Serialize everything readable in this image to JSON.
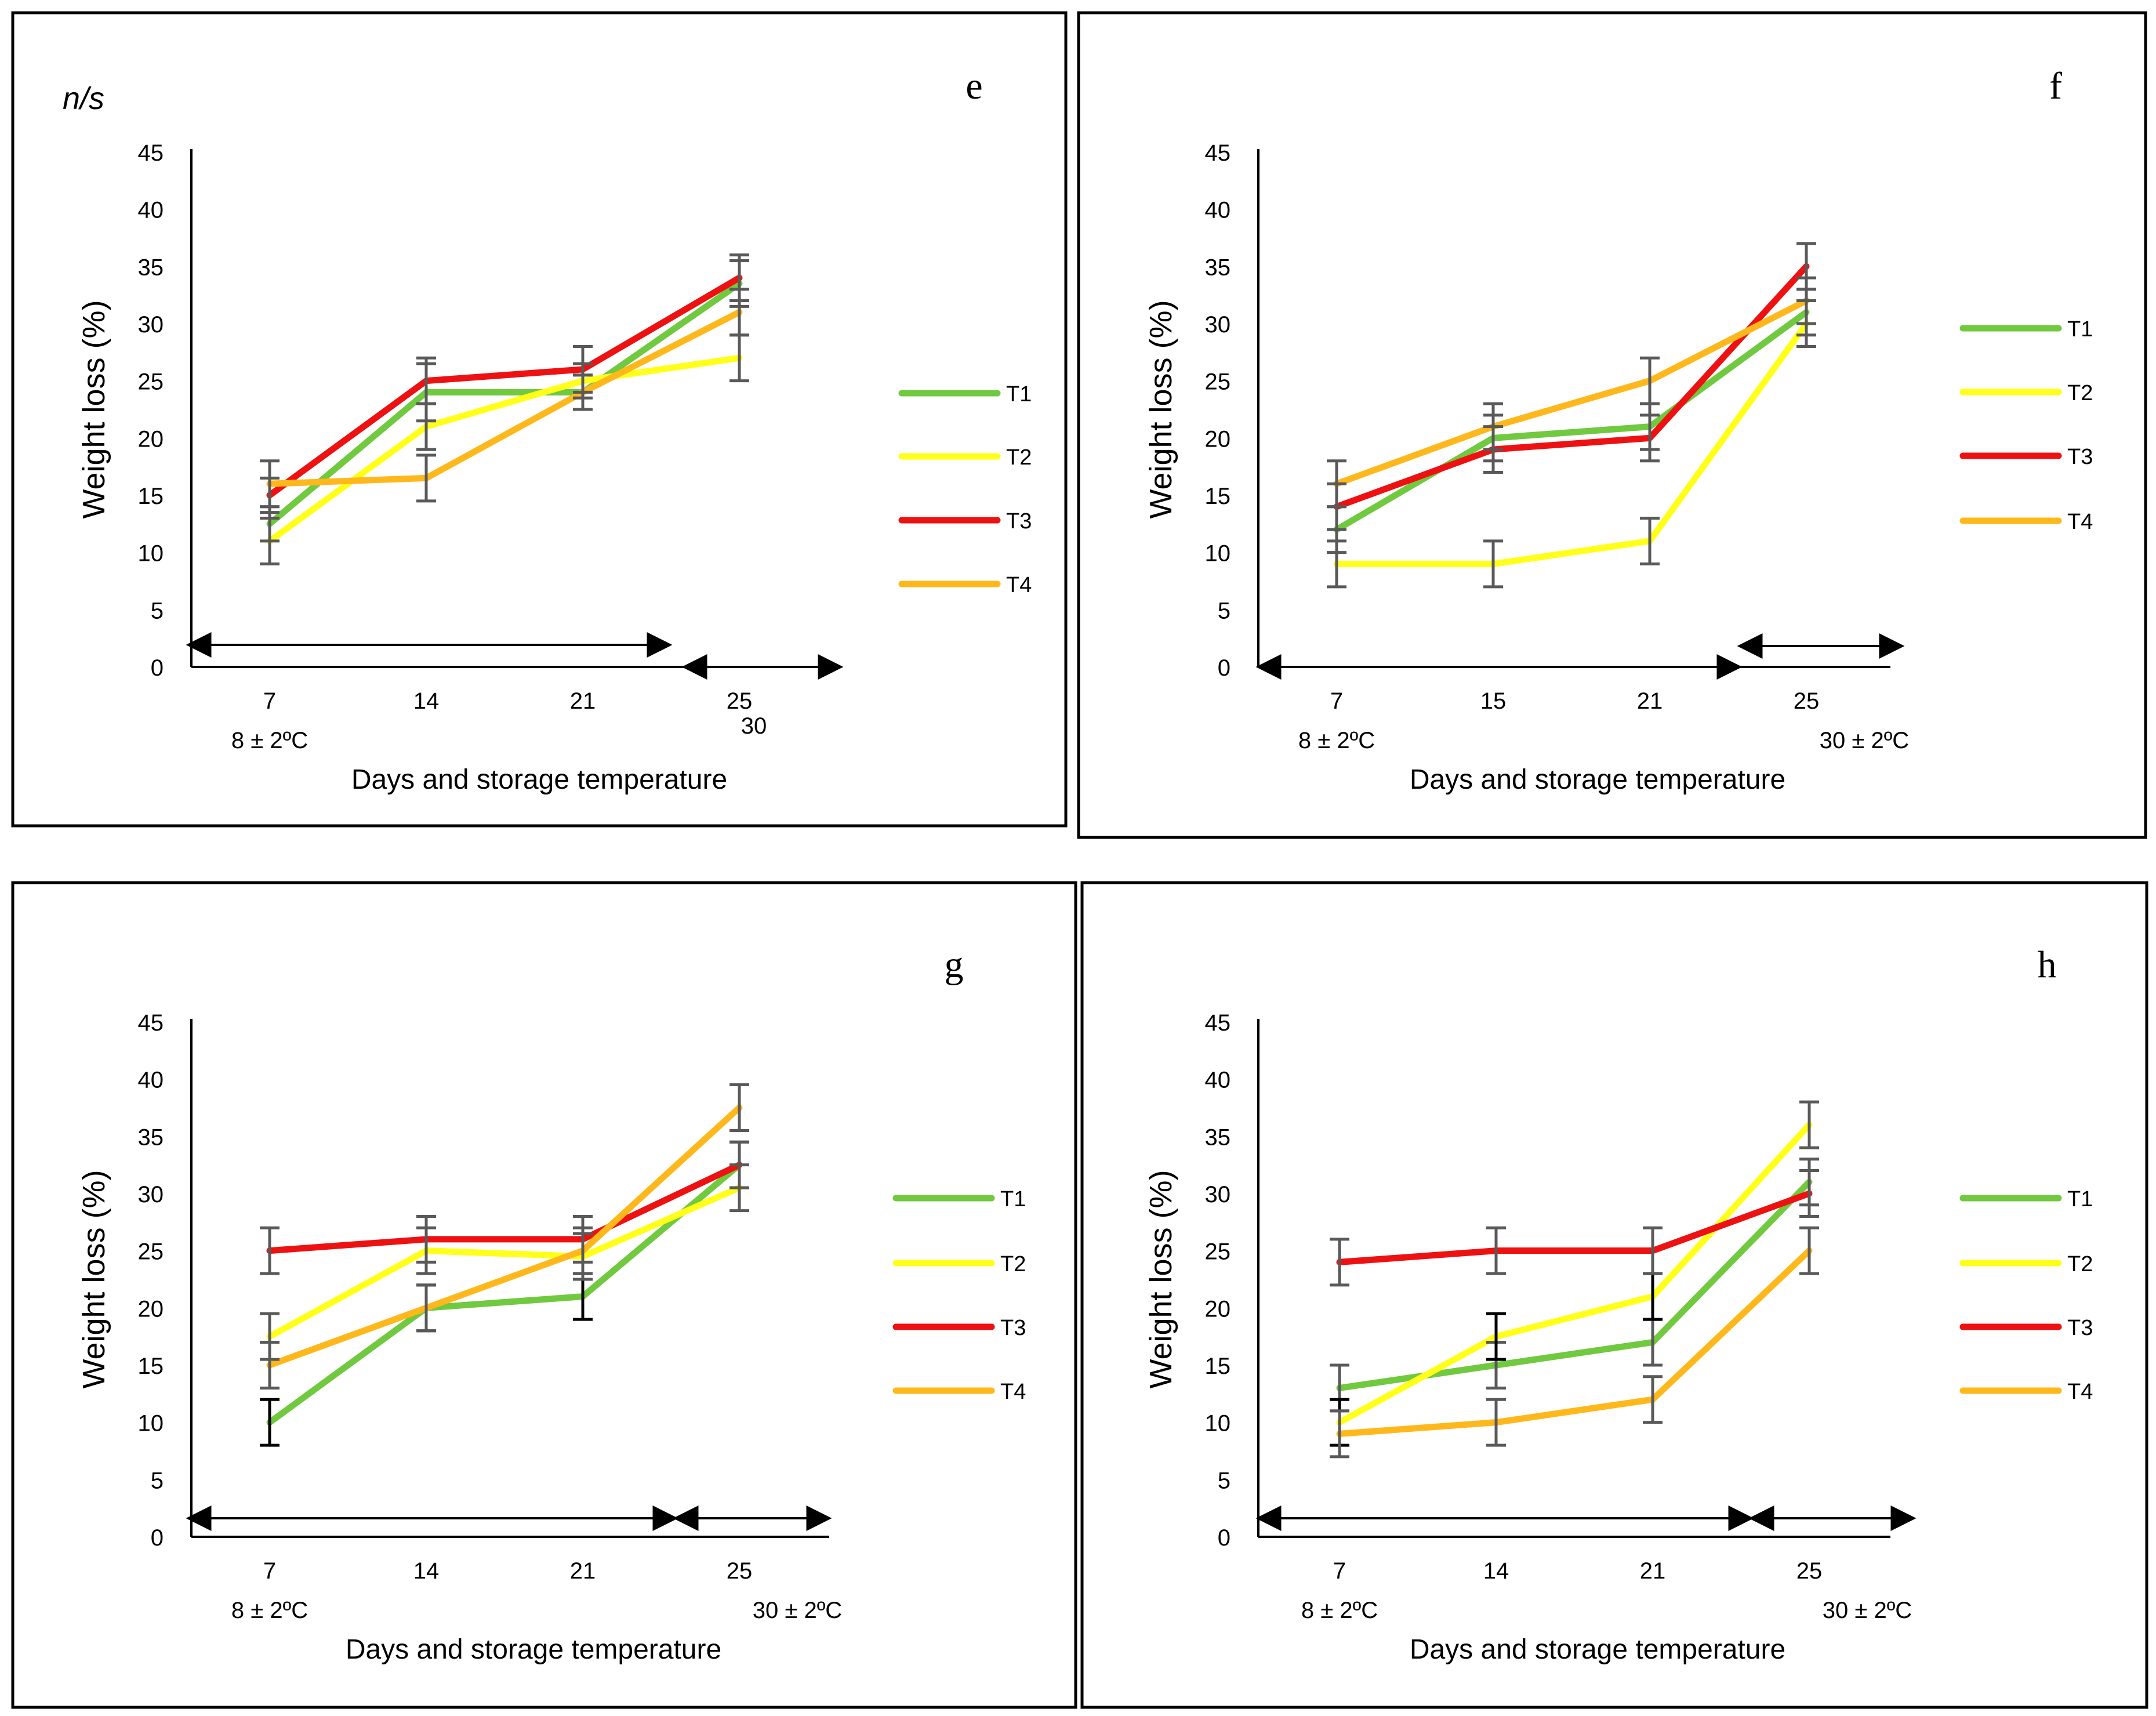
{
  "figure": {
    "colors": {
      "T1": "#70c93f",
      "T2": "#ffff1a",
      "T3": "#ee1111",
      "T4": "#ffb81c",
      "error_bar": "#595959",
      "error_bar_dark": "#000000",
      "axis": "#000000"
    }
  },
  "chart_data": [
    {
      "panel": "e",
      "type": "line",
      "corner_note": "n/s",
      "xlabel": "Days and storage temperature",
      "ylabel": "Weight loss (%)",
      "ylim": [
        0,
        45
      ],
      "yticks": [
        "0",
        "5",
        "10",
        "15",
        "20",
        "25",
        "30",
        "35",
        "40",
        "45"
      ],
      "categories": [
        "7",
        "14",
        "21",
        "25"
      ],
      "temp_labels": {
        "cold": "8 ± 2ºC",
        "warm": "30"
      },
      "legend": [
        "T1",
        "T2",
        "T3",
        "T4"
      ],
      "series": [
        {
          "name": "T1",
          "values": [
            12.5,
            24,
            24,
            33.5
          ],
          "err": [
            1.5,
            2.5,
            1.5,
            2
          ]
        },
        {
          "name": "T2",
          "values": [
            11,
            21,
            25,
            27
          ],
          "err": [
            2,
            2,
            1.5,
            2
          ]
        },
        {
          "name": "T3",
          "values": [
            15,
            25,
            26,
            34
          ],
          "err": [
            1.5,
            2,
            2,
            2
          ]
        },
        {
          "name": "T4",
          "values": [
            16,
            16.5,
            24,
            31
          ],
          "err": [
            2,
            2,
            1.5,
            2
          ]
        }
      ]
    },
    {
      "panel": "f",
      "type": "line",
      "xlabel": "Days and storage temperature",
      "ylabel": "Weight loss (%)",
      "ylim": [
        0,
        45
      ],
      "yticks": [
        "0",
        "5",
        "10",
        "15",
        "20",
        "25",
        "30",
        "35",
        "40",
        "45"
      ],
      "categories": [
        "7",
        "15",
        "21",
        "25"
      ],
      "temp_labels": {
        "cold": "8 ± 2ºC",
        "warm": "30 ± 2ºC"
      },
      "legend": [
        "T1",
        "T2",
        "T3",
        "T4"
      ],
      "series": [
        {
          "name": "T1",
          "values": [
            12,
            20,
            21,
            31
          ],
          "err": [
            2,
            2,
            2,
            2
          ]
        },
        {
          "name": "T2",
          "values": [
            9,
            9,
            11,
            30
          ],
          "err": [
            2,
            2,
            2,
            2
          ]
        },
        {
          "name": "T3",
          "values": [
            14,
            19,
            20,
            35
          ],
          "err": [
            2,
            2,
            2,
            2
          ]
        },
        {
          "name": "T4",
          "values": [
            16,
            21,
            25,
            32
          ],
          "err": [
            2,
            2,
            2,
            2
          ]
        }
      ]
    },
    {
      "panel": "g",
      "type": "line",
      "xlabel": "Days and storage temperature",
      "ylabel": "Weight loss (%)",
      "ylim": [
        0,
        45
      ],
      "yticks": [
        "0",
        "5",
        "10",
        "15",
        "20",
        "25",
        "30",
        "35",
        "40",
        "45"
      ],
      "categories": [
        "7",
        "14",
        "21",
        "25"
      ],
      "temp_labels": {
        "cold": "8 ± 2ºC",
        "warm": "30 ± 2ºC"
      },
      "legend": [
        "T1",
        "T2",
        "T3",
        "T4"
      ],
      "series": [
        {
          "name": "T1",
          "values": [
            10,
            20,
            21,
            32.5
          ],
          "err": [
            2,
            2,
            2,
            2
          ]
        },
        {
          "name": "T2",
          "values": [
            17.5,
            25,
            24.5,
            30.5
          ],
          "err": [
            2,
            2,
            2,
            2
          ]
        },
        {
          "name": "T3",
          "values": [
            25,
            26,
            26,
            32.5
          ],
          "err": [
            2,
            2,
            2,
            2
          ]
        },
        {
          "name": "T4",
          "values": [
            15,
            20,
            25,
            37.5
          ],
          "err": [
            2,
            2,
            2,
            2
          ]
        }
      ]
    },
    {
      "panel": "h",
      "type": "line",
      "xlabel": "Days and storage temperature",
      "ylabel": "Weight loss (%)",
      "ylim": [
        0,
        45
      ],
      "yticks": [
        "0",
        "5",
        "10",
        "15",
        "20",
        "25",
        "30",
        "35",
        "40",
        "45"
      ],
      "categories": [
        "7",
        "14",
        "21",
        "25"
      ],
      "temp_labels": {
        "cold": "8 ± 2ºC",
        "warm": "30 ± 2ºC"
      },
      "legend": [
        "T1",
        "T2",
        "T3",
        "T4"
      ],
      "series": [
        {
          "name": "T1",
          "values": [
            13,
            15,
            17,
            31
          ],
          "err": [
            2,
            2,
            2,
            2
          ]
        },
        {
          "name": "T2",
          "values": [
            10,
            17.5,
            21,
            36
          ],
          "err": [
            2,
            2,
            2,
            2
          ]
        },
        {
          "name": "T3",
          "values": [
            24,
            25,
            25,
            30
          ],
          "err": [
            2,
            2,
            2,
            2
          ]
        },
        {
          "name": "T4",
          "values": [
            9,
            10,
            12,
            25
          ],
          "err": [
            2,
            2,
            2,
            2
          ]
        }
      ]
    }
  ]
}
